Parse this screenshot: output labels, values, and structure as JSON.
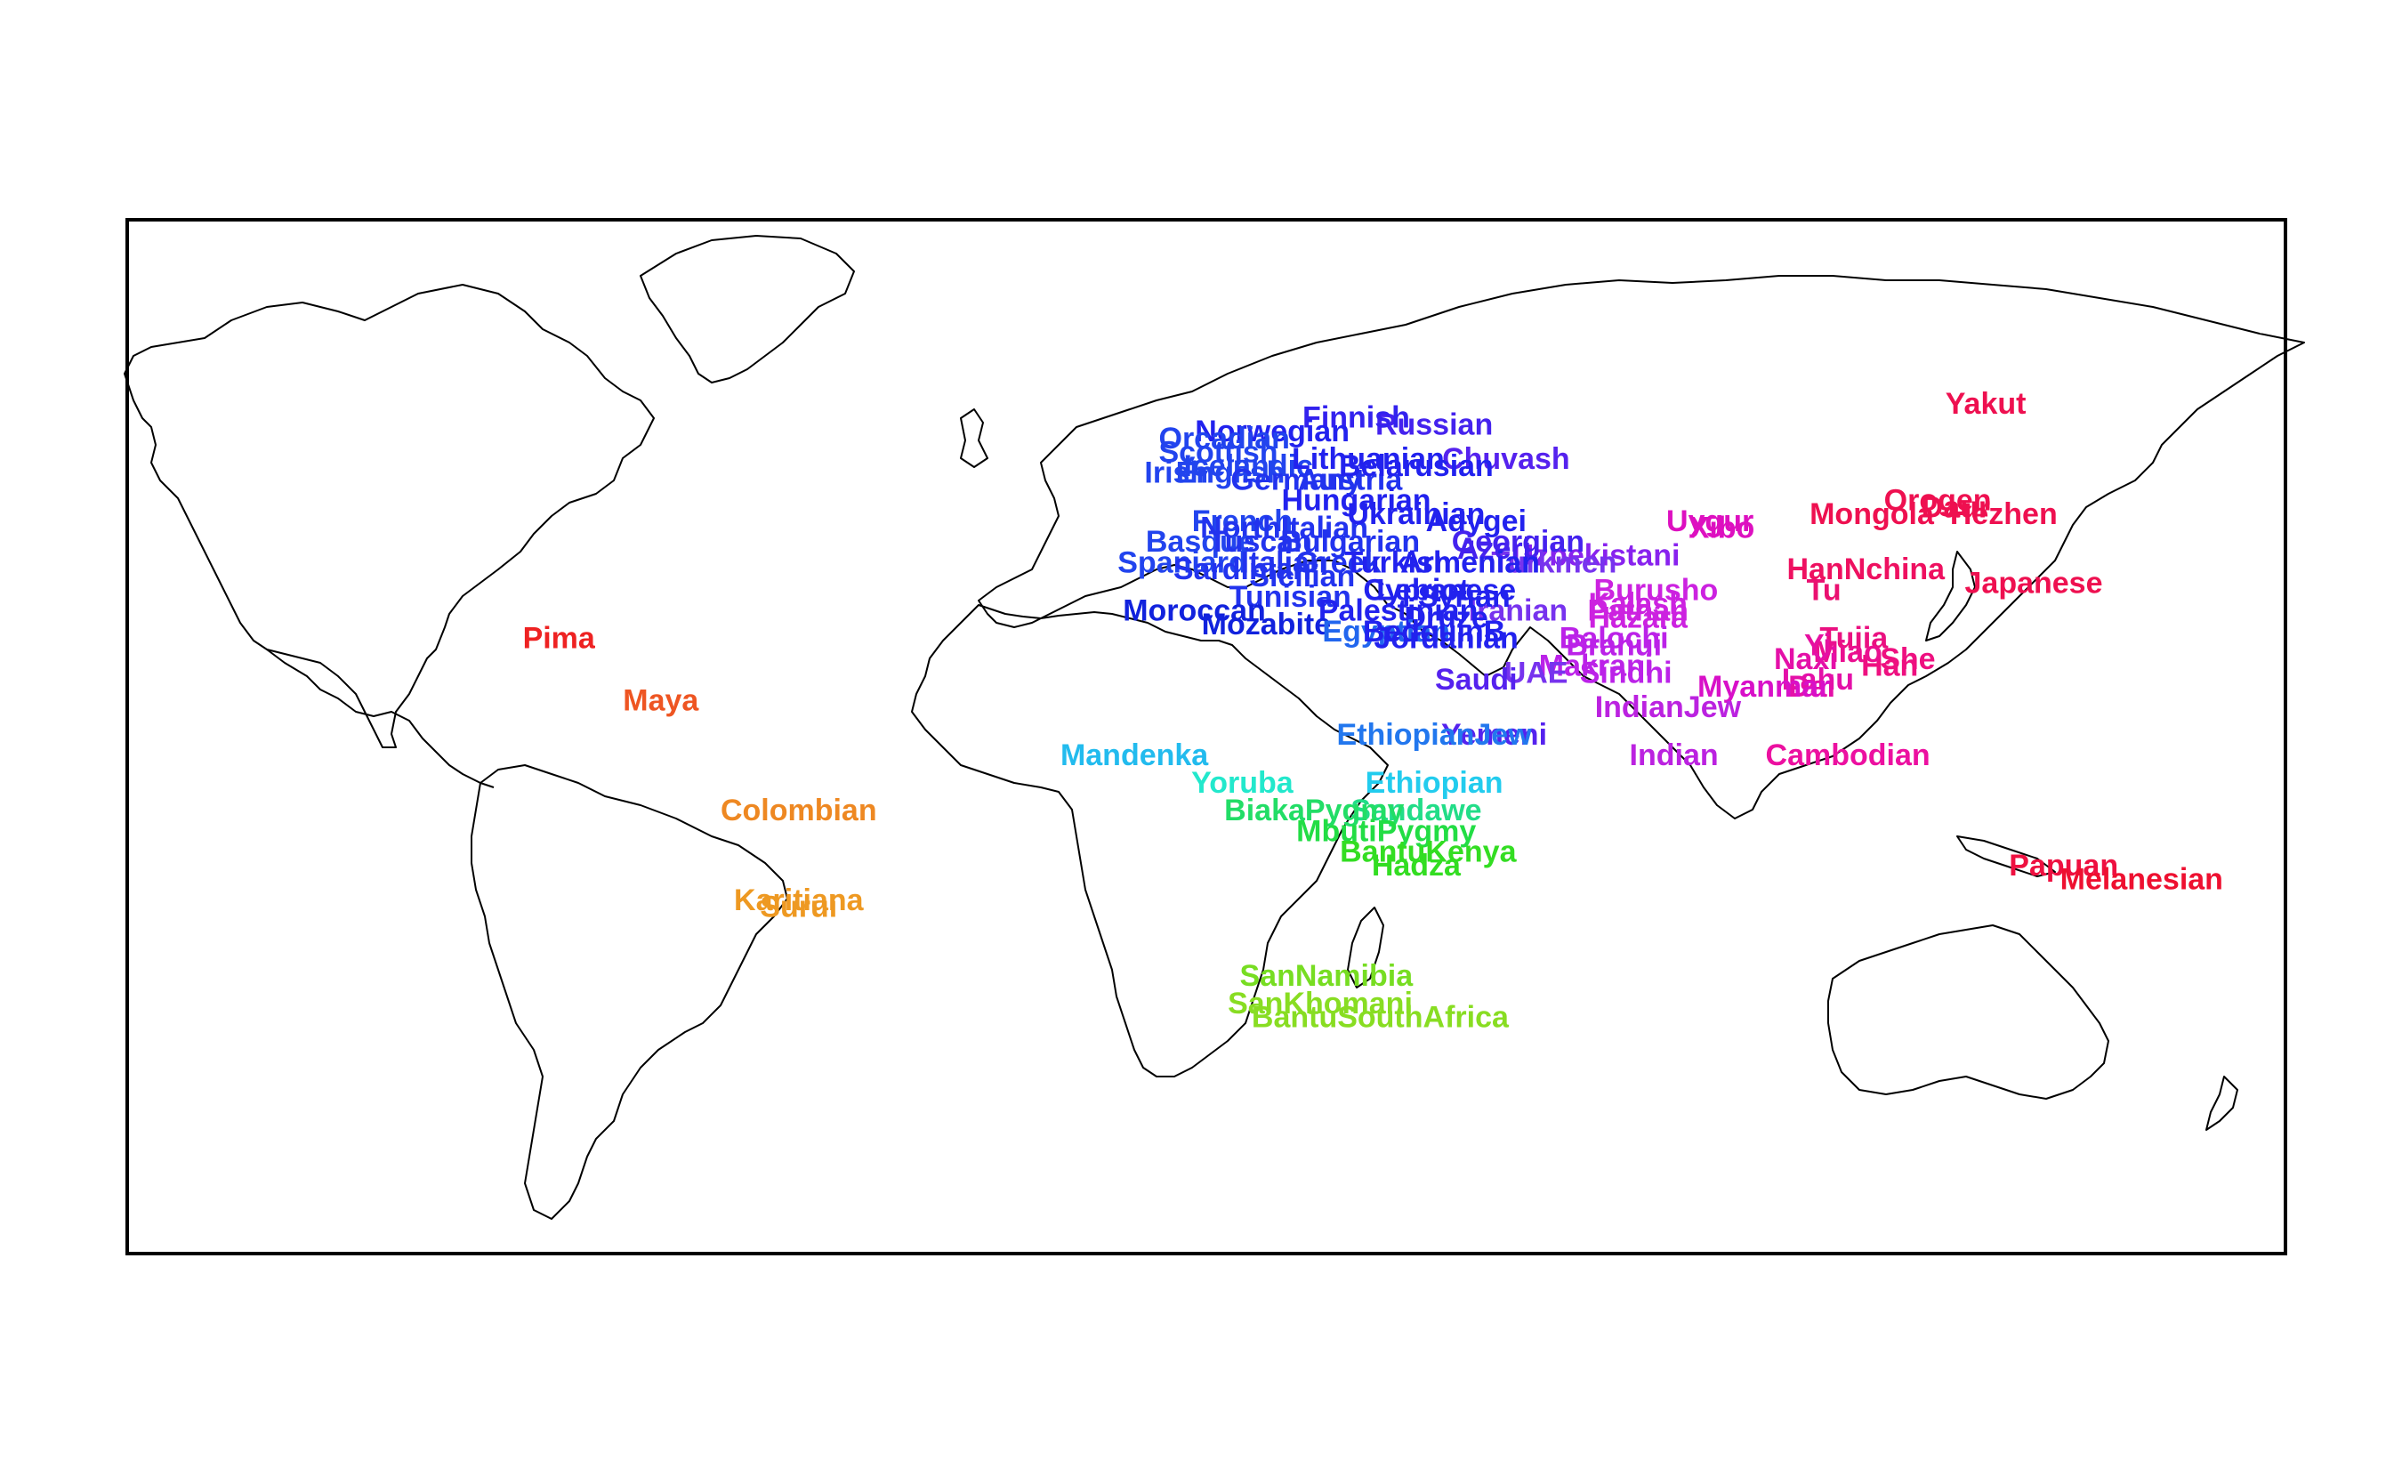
{
  "map": {
    "type": "world population labels",
    "projection": "equirectangular",
    "lon_range": [
      -180,
      180
    ],
    "lat_range": [
      -60,
      90
    ],
    "frame": true,
    "populations": [
      {
        "label": "Yakut",
        "lon": 130,
        "lat": 63,
        "color": "#ee1050"
      },
      {
        "label": "Mongola",
        "lon": 111,
        "lat": 47,
        "color": "#ee1050"
      },
      {
        "label": "Orogen",
        "lon": 122,
        "lat": 49,
        "color": "#ee1050"
      },
      {
        "label": "Daur",
        "lon": 125,
        "lat": 48,
        "color": "#ee1050"
      },
      {
        "label": "Hezhen",
        "lon": 133,
        "lat": 47,
        "color": "#ee1050"
      },
      {
        "label": "Japanese",
        "lon": 138,
        "lat": 37,
        "color": "#ee1050"
      },
      {
        "label": "HanNchina",
        "lon": 110,
        "lat": 39,
        "color": "#ee1060"
      },
      {
        "label": "Tu",
        "lon": 103,
        "lat": 36,
        "color": "#ea1070"
      },
      {
        "label": "Tujia",
        "lon": 108,
        "lat": 29,
        "color": "#ea1080"
      },
      {
        "label": "Xibo",
        "lon": 86,
        "lat": 45,
        "color": "#dd10c0"
      },
      {
        "label": "Uygur",
        "lon": 84,
        "lat": 46,
        "color": "#dd10c0"
      },
      {
        "label": "She",
        "lon": 117,
        "lat": 26,
        "color": "#ee1080"
      },
      {
        "label": "Han",
        "lon": 114,
        "lat": 25,
        "color": "#ee1080"
      },
      {
        "label": "Miao",
        "lon": 107,
        "lat": 27,
        "color": "#ea1090"
      },
      {
        "label": "Yi",
        "lon": 102,
        "lat": 28,
        "color": "#e610a0"
      },
      {
        "label": "Naxi",
        "lon": 100,
        "lat": 26,
        "color": "#e410a8"
      },
      {
        "label": "Lahu",
        "lon": 102,
        "lat": 23,
        "color": "#e410a8"
      },
      {
        "label": "Dai",
        "lon": 101,
        "lat": 22,
        "color": "#e410a8"
      },
      {
        "label": "Myanmar",
        "lon": 93,
        "lat": 22,
        "color": "#d810c8"
      },
      {
        "label": "Cambodian",
        "lon": 107,
        "lat": 12,
        "color": "#ec10a0"
      },
      {
        "label": "Papuan",
        "lon": 143,
        "lat": -4,
        "color": "#ee1040"
      },
      {
        "label": "Melanesian",
        "lon": 156,
        "lat": -6,
        "color": "#ee1030"
      },
      {
        "label": "Burusho",
        "lon": 75,
        "lat": 36,
        "color": "#cc22e0"
      },
      {
        "label": "Kalash",
        "lon": 72,
        "lat": 34,
        "color": "#cc22e0"
      },
      {
        "label": "Pathan",
        "lon": 72,
        "lat": 33,
        "color": "#cc22e0"
      },
      {
        "label": "Hazara",
        "lon": 72,
        "lat": 32,
        "color": "#cc22e0"
      },
      {
        "label": "Balochi",
        "lon": 68,
        "lat": 29,
        "color": "#bb22e8"
      },
      {
        "label": "Brahui",
        "lon": 68,
        "lat": 28,
        "color": "#bb22e8"
      },
      {
        "label": "Makrani",
        "lon": 65,
        "lat": 25,
        "color": "#bb22e8"
      },
      {
        "label": "Sindhi",
        "lon": 70,
        "lat": 24,
        "color": "#bb22e8"
      },
      {
        "label": "IndianJew",
        "lon": 77,
        "lat": 19,
        "color": "#bb22e0"
      },
      {
        "label": "Indian",
        "lon": 78,
        "lat": 12,
        "color": "#bb22e0"
      },
      {
        "label": "Uzbekistani",
        "lon": 65,
        "lat": 41,
        "color": "#8822ee"
      },
      {
        "label": "Turkmen",
        "lon": 58,
        "lat": 40,
        "color": "#7733ee"
      },
      {
        "label": "Iranian",
        "lon": 52,
        "lat": 33,
        "color": "#7733ee"
      },
      {
        "label": "UAE",
        "lon": 55,
        "lat": 24,
        "color": "#7733ee"
      },
      {
        "label": "Saudi",
        "lon": 45,
        "lat": 23,
        "color": "#5522ee"
      },
      {
        "label": "Yemeni",
        "lon": 48,
        "lat": 15,
        "color": "#5522ee"
      },
      {
        "label": "Chuvash",
        "lon": 50,
        "lat": 55,
        "color": "#5522ee"
      },
      {
        "label": "Russian",
        "lon": 38,
        "lat": 60,
        "color": "#4422ee"
      },
      {
        "label": "Finnish",
        "lon": 25,
        "lat": 61,
        "color": "#3322ee"
      },
      {
        "label": "Norwegian",
        "lon": 11,
        "lat": 59,
        "color": "#2222ee"
      },
      {
        "label": "Orcadian",
        "lon": 3,
        "lat": 58,
        "color": "#2244ee"
      },
      {
        "label": "Scottish",
        "lon": 2,
        "lat": 56,
        "color": "#2244ee"
      },
      {
        "label": "Irish",
        "lon": -5,
        "lat": 53,
        "color": "#2244ee"
      },
      {
        "label": "English",
        "lon": 4,
        "lat": 53,
        "color": "#2244ee"
      },
      {
        "label": "Icelandic",
        "lon": 7,
        "lat": 54,
        "color": "#2244ee"
      },
      {
        "label": "Germany",
        "lon": 15,
        "lat": 52,
        "color": "#2233ee"
      },
      {
        "label": "Austria",
        "lon": 24,
        "lat": 52,
        "color": "#2233ee"
      },
      {
        "label": "Lithuanian",
        "lon": 27,
        "lat": 55,
        "color": "#2222ee"
      },
      {
        "label": "Belarusian",
        "lon": 35,
        "lat": 54,
        "color": "#2222ee"
      },
      {
        "label": "Hungarian",
        "lon": 25,
        "lat": 49,
        "color": "#2222ee"
      },
      {
        "label": "French",
        "lon": 6,
        "lat": 46,
        "color": "#2244ee"
      },
      {
        "label": "NorthItalian",
        "lon": 13,
        "lat": 45,
        "color": "#2233ee"
      },
      {
        "label": "Ukrainian",
        "lon": 35,
        "lat": 47,
        "color": "#2222ee"
      },
      {
        "label": "Basque",
        "lon": -1,
        "lat": 43,
        "color": "#2244ee"
      },
      {
        "label": "Tuscan",
        "lon": 9,
        "lat": 43,
        "color": "#2233ee"
      },
      {
        "label": "Bulgarian",
        "lon": 24,
        "lat": 43,
        "color": "#2233ee"
      },
      {
        "label": "Adygei",
        "lon": 45,
        "lat": 46,
        "color": "#2222ee"
      },
      {
        "label": "Georgian",
        "lon": 52,
        "lat": 43,
        "color": "#4422ee"
      },
      {
        "label": "Azeri",
        "lon": 48,
        "lat": 42,
        "color": "#4422ee"
      },
      {
        "label": "Spaniard",
        "lon": -4,
        "lat": 40,
        "color": "#2244ee"
      },
      {
        "label": "Sardinian",
        "lon": 6,
        "lat": 39,
        "color": "#2233ee"
      },
      {
        "label": "Italian",
        "lon": 13,
        "lat": 40,
        "color": "#2233ee"
      },
      {
        "label": "Greek",
        "lon": 22,
        "lat": 40,
        "color": "#2233ee"
      },
      {
        "label": "Turkish",
        "lon": 32,
        "lat": 40,
        "color": "#2222ee"
      },
      {
        "label": "Armenian",
        "lon": 44,
        "lat": 40,
        "color": "#2222ee"
      },
      {
        "label": "Sicilian",
        "lon": 16,
        "lat": 38,
        "color": "#2233ee"
      },
      {
        "label": "Cypriot",
        "lon": 35,
        "lat": 36,
        "color": "#2222ee"
      },
      {
        "label": "Tunisian",
        "lon": 14,
        "lat": 35,
        "color": "#2233ee"
      },
      {
        "label": "Lebanese",
        "lon": 40,
        "lat": 36,
        "color": "#2222ee"
      },
      {
        "label": "Syrian",
        "lon": 43,
        "lat": 35,
        "color": "#2222ee"
      },
      {
        "label": "Moroccan",
        "lon": -2,
        "lat": 33,
        "color": "#1122dd"
      },
      {
        "label": "Palestinian",
        "lon": 32,
        "lat": 33,
        "color": "#2222ee"
      },
      {
        "label": "Druze",
        "lon": 40,
        "lat": 32,
        "color": "#2222ee"
      },
      {
        "label": "Mozabite",
        "lon": 10,
        "lat": 31,
        "color": "#1122dd"
      },
      {
        "label": "Egyptian",
        "lon": 30,
        "lat": 30,
        "color": "#2266ee"
      },
      {
        "label": "BedouinB",
        "lon": 38,
        "lat": 30,
        "color": "#2222ee"
      },
      {
        "label": "Jordanian",
        "lon": 40,
        "lat": 29,
        "color": "#2222ee"
      },
      {
        "label": "EthiopianJew",
        "lon": 38,
        "lat": 15,
        "color": "#2277ee"
      },
      {
        "label": "Ethiopian",
        "lon": 38,
        "lat": 8,
        "color": "#22ccee"
      },
      {
        "label": "Mandenka",
        "lon": -12,
        "lat": 12,
        "color": "#22bbee"
      },
      {
        "label": "Yoruba",
        "lon": 6,
        "lat": 8,
        "color": "#22e8cc"
      },
      {
        "label": "Sandawe",
        "lon": 35,
        "lat": 4,
        "color": "#22dd88"
      },
      {
        "label": "BiakaPygmy",
        "lon": 18,
        "lat": 4,
        "color": "#22dd66"
      },
      {
        "label": "MbutiPygmy",
        "lon": 30,
        "lat": 1,
        "color": "#22dd44"
      },
      {
        "label": "BantuKenya",
        "lon": 37,
        "lat": -2,
        "color": "#33dd22"
      },
      {
        "label": "Hadza",
        "lon": 35,
        "lat": -4,
        "color": "#33dd22"
      },
      {
        "label": "SanNamibia",
        "lon": 20,
        "lat": -20,
        "color": "#77dd22"
      },
      {
        "label": "SanKhomani",
        "lon": 19,
        "lat": -24,
        "color": "#88dd22"
      },
      {
        "label": "BantuSouthAfrica",
        "lon": 29,
        "lat": -26,
        "color": "#88dd22"
      },
      {
        "label": "Pima",
        "lon": -108,
        "lat": 29,
        "color": "#ee2222"
      },
      {
        "label": "Maya",
        "lon": -91,
        "lat": 20,
        "color": "#ee5522"
      },
      {
        "label": "Colombian",
        "lon": -68,
        "lat": 4,
        "color": "#ee8822"
      },
      {
        "label": "Karitiana",
        "lon": -68,
        "lat": -9,
        "color": "#ee9922"
      },
      {
        "label": "Surui",
        "lon": -68,
        "lat": -10,
        "color": "#ee9922"
      }
    ]
  }
}
